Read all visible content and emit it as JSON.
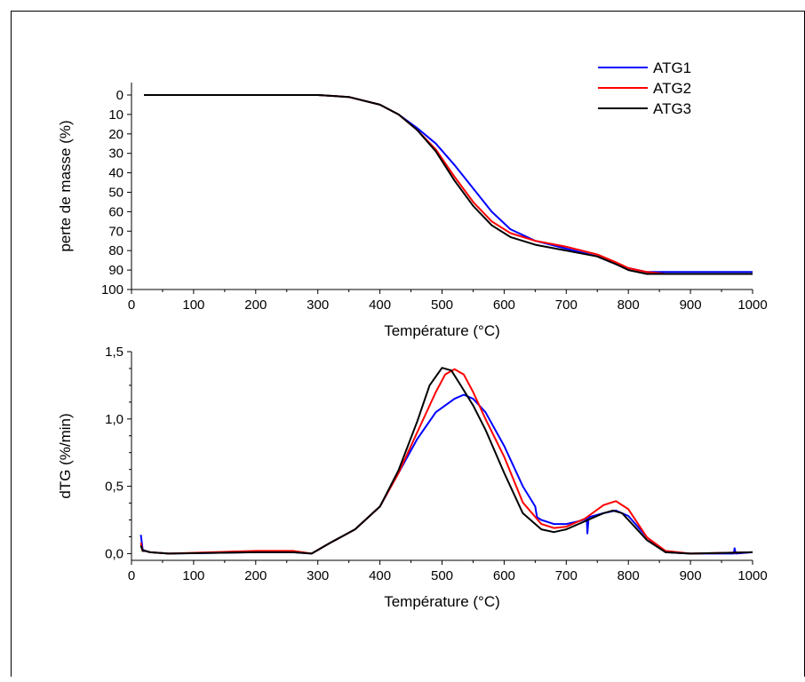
{
  "chart_data": [
    {
      "type": "line",
      "xlabel": "Température (°C)",
      "ylabel": "perte de masse (%)",
      "xlim": [
        0,
        1000
      ],
      "ylim": [
        100,
        0
      ],
      "y_inverted": true,
      "xticks": [
        0,
        100,
        200,
        300,
        400,
        500,
        600,
        700,
        800,
        900,
        1000
      ],
      "yticks": [
        0,
        10,
        20,
        30,
        40,
        50,
        60,
        70,
        80,
        90,
        100
      ],
      "grid": false,
      "legend_position": "top-right",
      "series": [
        {
          "name": "ATG1",
          "color": "#0000ff",
          "x": [
            20,
            100,
            200,
            300,
            350,
            400,
            430,
            460,
            490,
            520,
            550,
            580,
            610,
            650,
            700,
            750,
            780,
            800,
            830,
            860,
            900,
            1000
          ],
          "y": [
            0,
            0,
            0,
            0,
            1,
            5,
            10,
            17,
            25,
            36,
            48,
            60,
            69,
            75,
            79,
            83,
            87,
            89,
            91,
            91,
            91,
            91
          ]
        },
        {
          "name": "ATG2",
          "color": "#ff0000",
          "x": [
            20,
            100,
            200,
            300,
            350,
            400,
            430,
            460,
            490,
            520,
            550,
            580,
            610,
            650,
            700,
            750,
            780,
            800,
            830,
            860,
            900,
            1000
          ],
          "y": [
            0,
            0,
            0,
            0,
            1,
            5,
            10,
            18,
            28,
            42,
            55,
            65,
            71,
            75,
            78,
            82,
            86,
            89,
            91,
            92,
            92,
            92
          ]
        },
        {
          "name": "ATG3",
          "color": "#000000",
          "x": [
            20,
            100,
            200,
            300,
            350,
            400,
            430,
            460,
            490,
            520,
            550,
            580,
            610,
            650,
            700,
            750,
            780,
            800,
            830,
            860,
            900,
            1000
          ],
          "y": [
            0,
            0,
            0,
            0,
            1,
            5,
            10,
            18,
            29,
            44,
            57,
            67,
            73,
            77,
            80,
            83,
            87,
            90,
            92,
            92,
            92,
            92
          ]
        }
      ]
    },
    {
      "type": "line",
      "xlabel": "Température (°C)",
      "ylabel": "dTG (%/min)",
      "xlim": [
        0,
        1000
      ],
      "ylim": [
        -0.05,
        1.5
      ],
      "xticks": [
        0,
        100,
        200,
        300,
        400,
        500,
        600,
        700,
        800,
        900,
        1000
      ],
      "yticks": [
        0.0,
        0.5,
        1.0,
        1.5
      ],
      "ytick_labels": [
        "0,0",
        "0,5",
        "1,0",
        "1,5"
      ],
      "grid": false,
      "series": [
        {
          "name": "ATG1",
          "color": "#0000ff",
          "x": [
            15,
            18,
            22,
            30,
            60,
            200,
            260,
            290,
            320,
            360,
            400,
            430,
            460,
            490,
            520,
            535,
            550,
            570,
            600,
            630,
            650,
            653,
            660,
            680,
            700,
            720,
            733,
            734,
            736,
            760,
            780,
            800,
            830,
            860,
            900,
            970,
            971,
            973,
            1000
          ],
          "y": [
            0.14,
            0.03,
            0.02,
            0.01,
            0.0,
            0.01,
            0.01,
            0.0,
            0.08,
            0.18,
            0.35,
            0.6,
            0.85,
            1.05,
            1.15,
            1.18,
            1.15,
            1.05,
            0.8,
            0.5,
            0.35,
            0.27,
            0.25,
            0.22,
            0.22,
            0.24,
            0.26,
            0.15,
            0.27,
            0.3,
            0.32,
            0.28,
            0.12,
            0.01,
            0.0,
            0.0,
            0.04,
            0.0,
            0.01
          ]
        },
        {
          "name": "ATG2",
          "color": "#ff0000",
          "x": [
            15,
            18,
            22,
            30,
            60,
            200,
            260,
            290,
            320,
            360,
            400,
            430,
            460,
            490,
            505,
            520,
            535,
            550,
            570,
            600,
            630,
            660,
            680,
            700,
            730,
            760,
            780,
            800,
            830,
            860,
            900,
            1000
          ],
          "y": [
            0.08,
            0.02,
            0.02,
            0.01,
            0.0,
            0.02,
            0.02,
            0.0,
            0.08,
            0.18,
            0.35,
            0.6,
            0.9,
            1.2,
            1.33,
            1.37,
            1.33,
            1.2,
            1.0,
            0.72,
            0.38,
            0.22,
            0.19,
            0.2,
            0.26,
            0.36,
            0.39,
            0.33,
            0.12,
            0.02,
            0.0,
            0.01
          ]
        },
        {
          "name": "ATG3",
          "color": "#000000",
          "x": [
            15,
            18,
            22,
            30,
            60,
            200,
            260,
            290,
            320,
            360,
            400,
            430,
            460,
            480,
            500,
            515,
            530,
            550,
            570,
            600,
            630,
            660,
            680,
            700,
            730,
            760,
            775,
            790,
            810,
            830,
            860,
            900,
            1000
          ],
          "y": [
            0.06,
            0.02,
            0.02,
            0.01,
            0.0,
            0.01,
            0.01,
            0.0,
            0.08,
            0.18,
            0.35,
            0.62,
            0.98,
            1.25,
            1.38,
            1.36,
            1.25,
            1.1,
            0.92,
            0.6,
            0.3,
            0.18,
            0.16,
            0.18,
            0.24,
            0.3,
            0.32,
            0.3,
            0.2,
            0.1,
            0.01,
            0.0,
            0.01
          ]
        }
      ]
    }
  ]
}
